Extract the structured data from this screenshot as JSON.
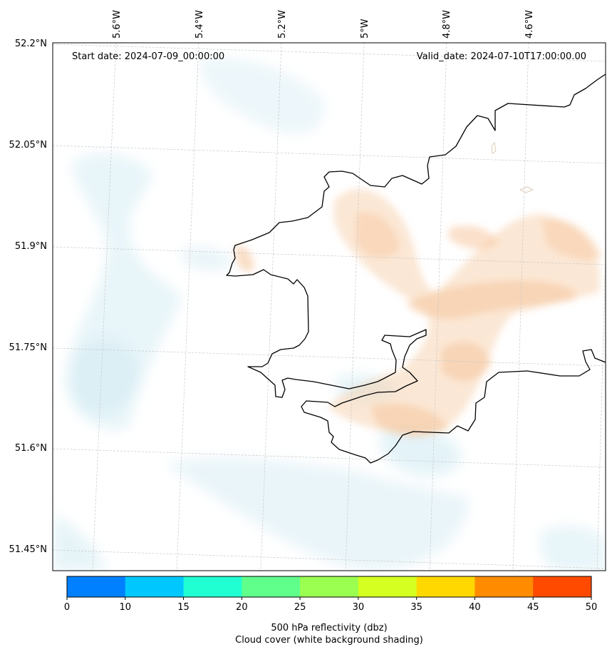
{
  "map": {
    "start_date": "Start date: 2024-07-09_00:00:00",
    "valid_date": "Valid_date: 2024-07-10T17:00:00.00",
    "lat_labels": [
      "52.2°N",
      "52.05°N",
      "51.9°N",
      "51.75°N",
      "51.6°N",
      "51.45°N"
    ],
    "lon_labels": [
      "5.6°W",
      "5.4°W",
      "5.2°W",
      "5°W",
      "4.8°W",
      "4.6°W"
    ]
  },
  "colorbar": {
    "ticks": [
      "0",
      "10",
      "15",
      "20",
      "25",
      "30",
      "35",
      "40",
      "45",
      "50"
    ],
    "colors": [
      "#0080ff",
      "#00c8ff",
      "#20ffd2",
      "#60ff8c",
      "#9aff50",
      "#d4ff20",
      "#ffd800",
      "#ff8c00",
      "#ff4a00"
    ],
    "label_line1": "500 hPa reflectivity (dbz)",
    "label_line2": "Cloud cover (white background shading)"
  },
  "colors": {
    "coast": "#000000",
    "grid": "#c8c8c8",
    "cloud_blue": "#d6ecf4",
    "reflect_orange": "#f7c9a2"
  }
}
